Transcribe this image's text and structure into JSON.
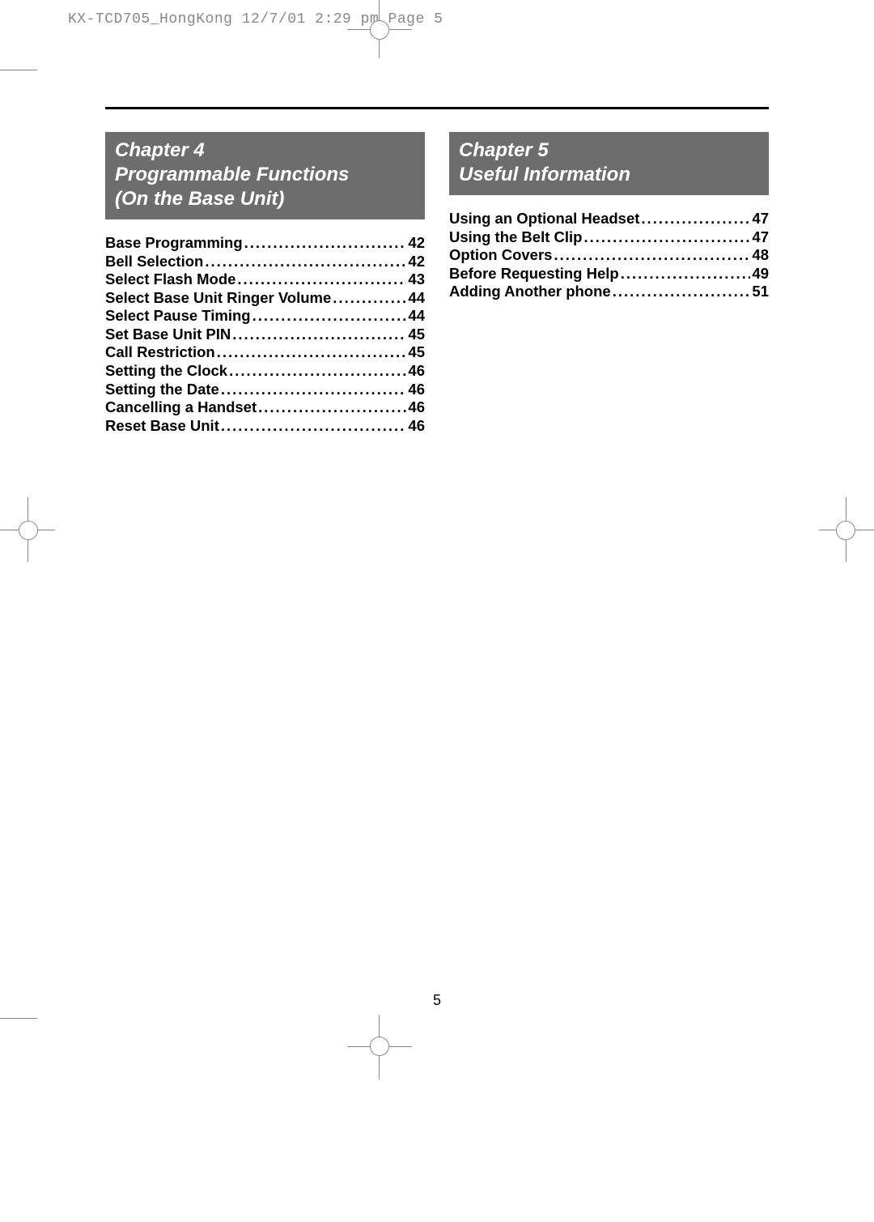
{
  "crop_header": "KX-TCD705_HongKong  12/7/01  2:29 pm  Page 5",
  "page_number": "5",
  "chapters": [
    {
      "title_lines": [
        "Chapter 4",
        "Programmable Functions",
        "(On the Base Unit)"
      ],
      "entries": [
        {
          "label": "Base Programming ",
          "page": "42"
        },
        {
          "label": "Bell Selection",
          "page": "42"
        },
        {
          "label": "Select Flash Mode",
          "page": "43"
        },
        {
          "label": "Select Base Unit Ringer Volume",
          "page": "44"
        },
        {
          "label": "Select Pause Timing ",
          "page": "44"
        },
        {
          "label": "Set Base Unit PIN ",
          "page": "45"
        },
        {
          "label": "Call Restriction ",
          "page": "45"
        },
        {
          "label": "Setting the Clock",
          "page": "46"
        },
        {
          "label": "Setting the Date",
          "page": "46"
        },
        {
          "label": "Cancelling a Handset",
          "page": "46"
        },
        {
          "label": "Reset Base Unit",
          "page": "46"
        }
      ]
    },
    {
      "title_lines": [
        "Chapter 5",
        "Useful Information"
      ],
      "entries": [
        {
          "label": "Using an Optional Headset",
          "page": "47"
        },
        {
          "label": "Using the Belt Clip ",
          "page": "47"
        },
        {
          "label": "Option Covers",
          "page": "48"
        },
        {
          "label": "Before Requesting Help",
          "page": "49"
        },
        {
          "label": "Adding Another phone",
          "page": "51"
        }
      ]
    }
  ],
  "styling": {
    "page_bg": "#ffffff",
    "text_color": "#000000",
    "crop_text_color": "#888888",
    "chapter_bg": "#6d6d6d",
    "chapter_text": "#ffffff",
    "chapter_fontsize": 24,
    "toc_fontsize": 18.5,
    "rule_color": "#000000",
    "rule_width": 3
  }
}
